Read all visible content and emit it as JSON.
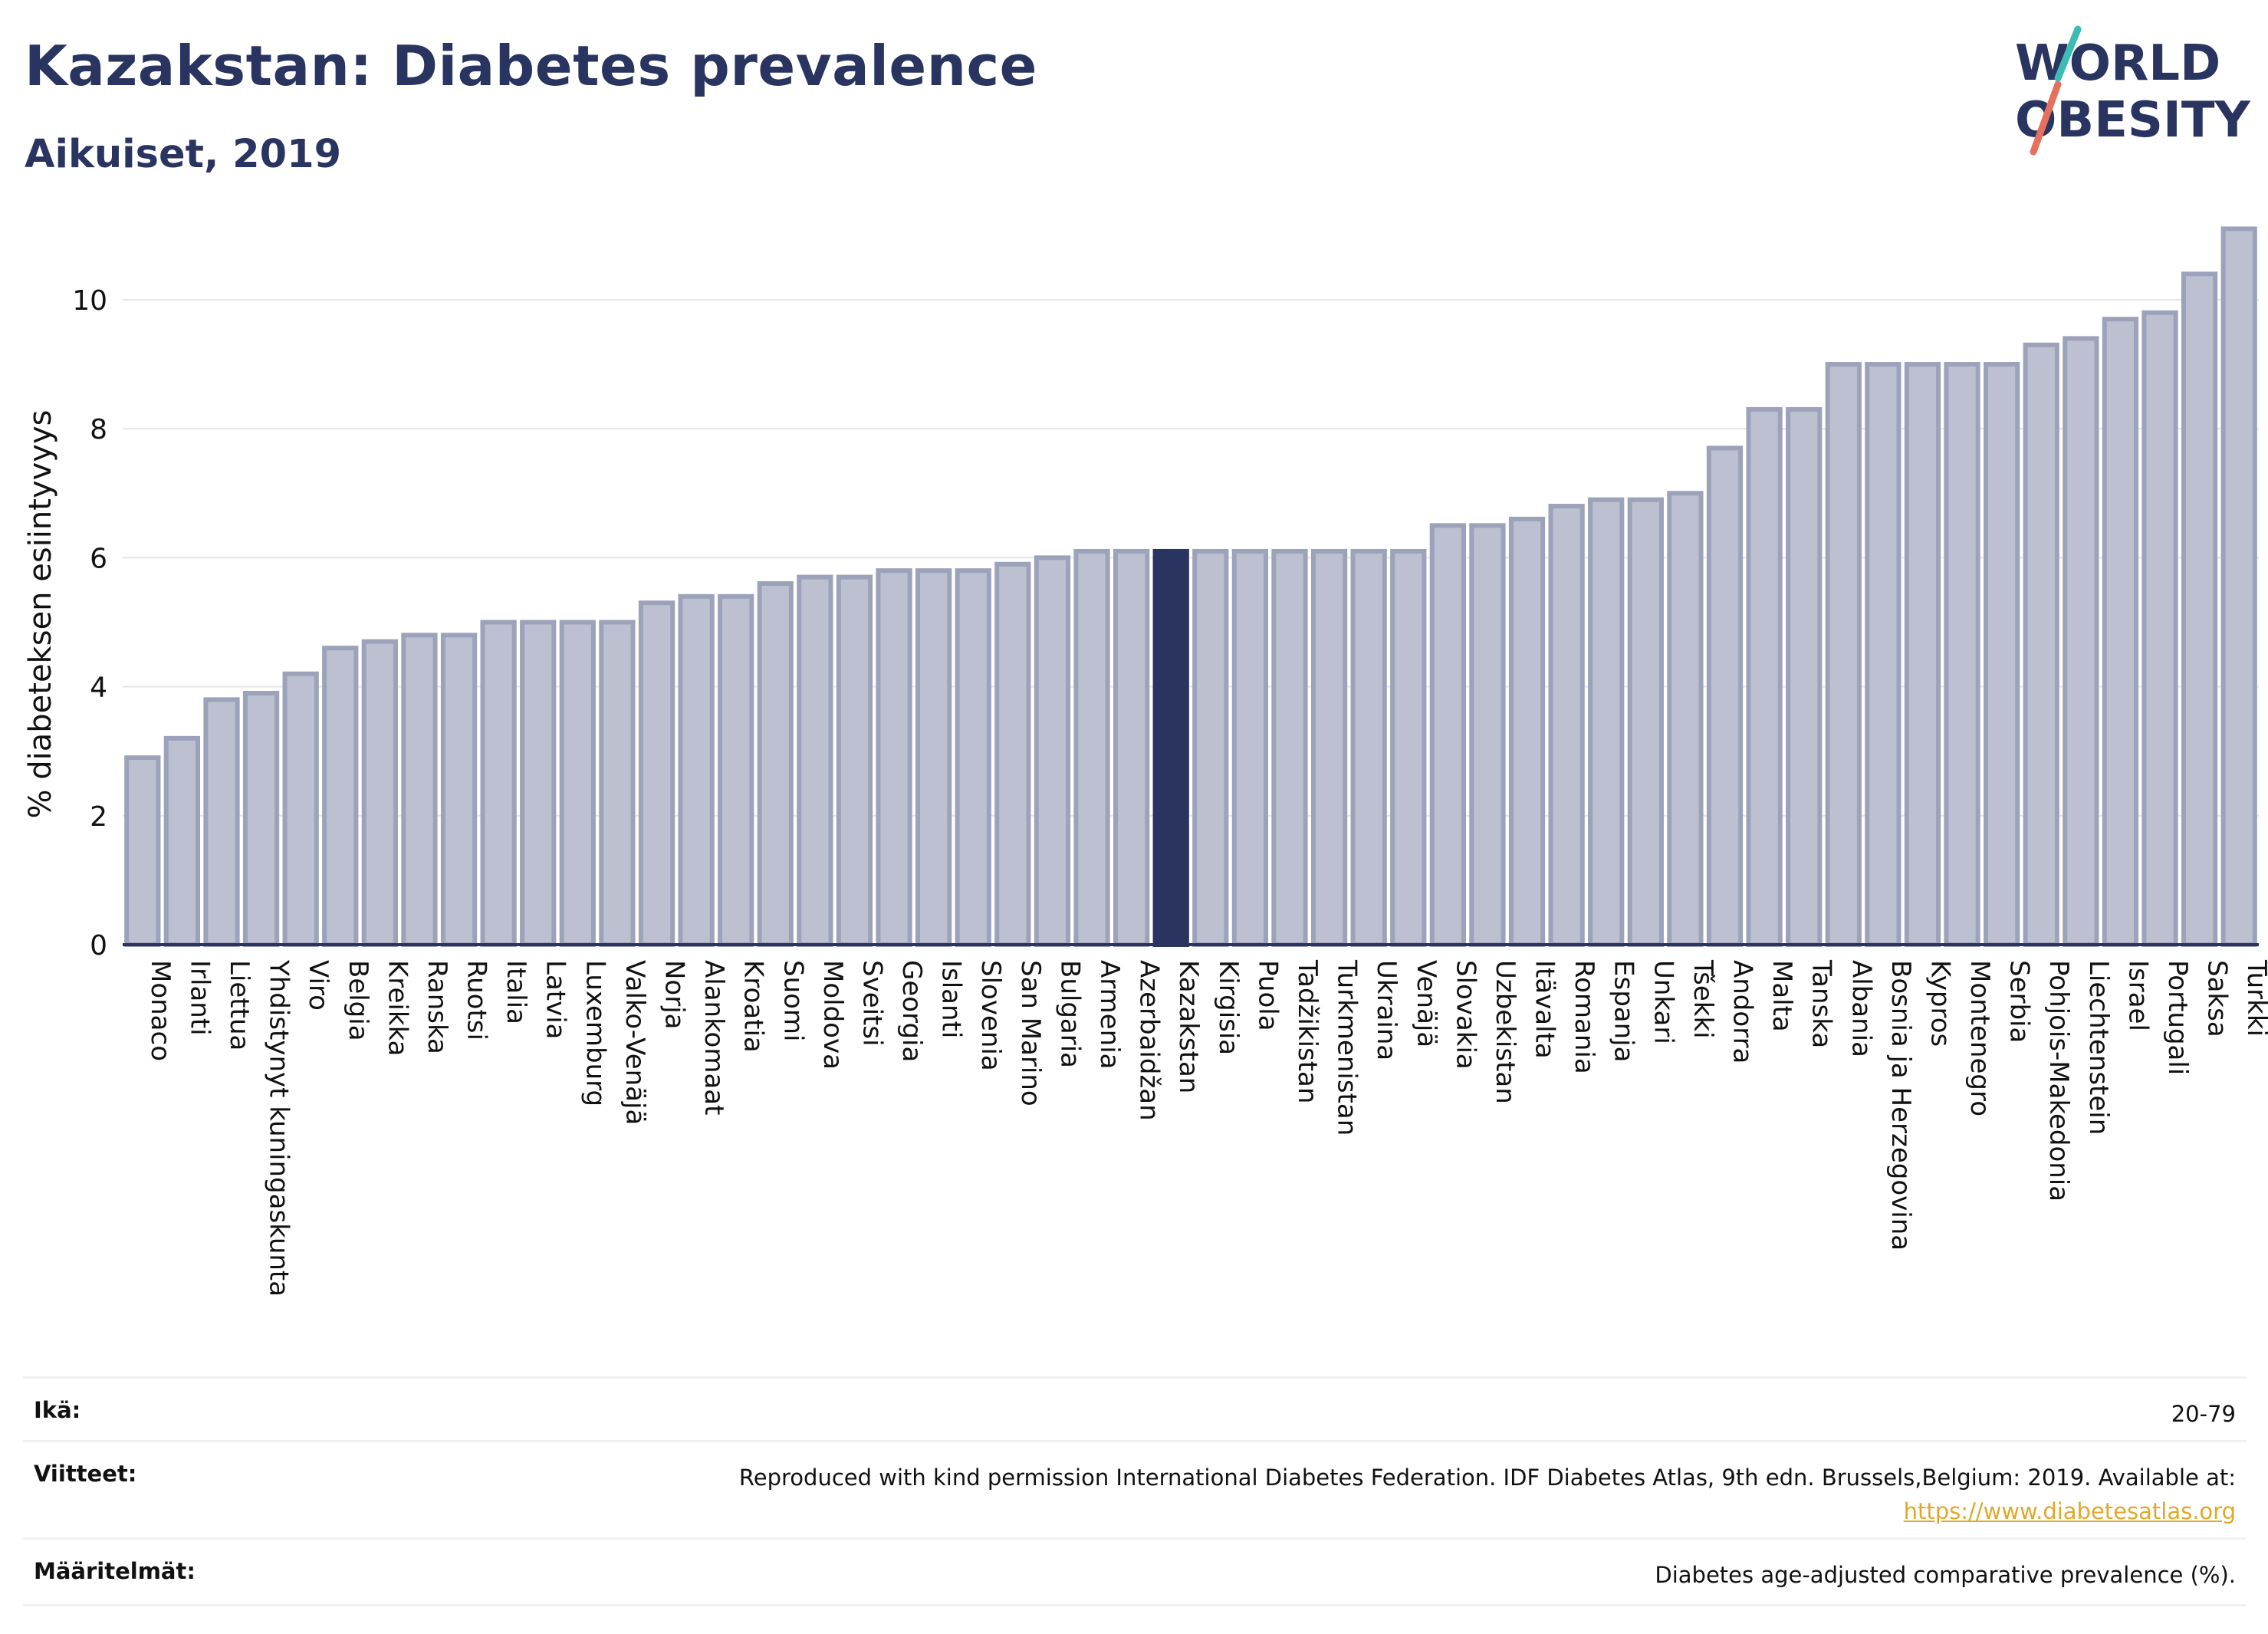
{
  "header": {
    "title": "Kazakstan: Diabetes prevalence",
    "subtitle": "Aikuiset, 2019"
  },
  "logo": {
    "line1": "WORLD",
    "line2": "OBESITY",
    "colors": {
      "navy": "#2a3460",
      "teal": "#3bbcb4",
      "coral": "#e5705d"
    }
  },
  "colors": {
    "bar_fill": "#bcc0d0",
    "bar_stroke": "#9da2bb",
    "highlight_fill": "#2a3460",
    "axis": "#2a3460",
    "grid": "#e6e6e6"
  },
  "chart_data": {
    "type": "bar",
    "ylabel": "% diabeteksen esiintyvyys",
    "xlabel": "",
    "ylim": [
      0,
      11.2
    ],
    "yticks": [
      0,
      2,
      4,
      6,
      8,
      10
    ],
    "grid": true,
    "highlight": "Kazakstan",
    "categories": [
      "Monaco",
      "Irlanti",
      "Liettua",
      "Yhdistynyt kuningaskunta",
      "Viro",
      "Belgia",
      "Kreikka",
      "Ranska",
      "Ruotsi",
      "Italia",
      "Latvia",
      "Luxemburg",
      "Valko-Venäjä",
      "Norja",
      "Alankomaat",
      "Kroatia",
      "Suomi",
      "Moldova",
      "Sveitsi",
      "Georgia",
      "Islanti",
      "Slovenia",
      "San Marino",
      "Bulgaria",
      "Armenia",
      "Azerbaidžan",
      "Kazakstan",
      "Kirgisia",
      "Puola",
      "Tadžikistan",
      "Turkmenistan",
      "Ukraina",
      "Venäjä",
      "Slovakia",
      "Uzbekistan",
      "Itävalta",
      "Romania",
      "Espanja",
      "Unkari",
      "Tšekki",
      "Andorra",
      "Malta",
      "Tanska",
      "Albania",
      "Bosnia ja Herzegovina",
      "Kypros",
      "Montenegro",
      "Serbia",
      "Pohjois-Makedonia",
      "Liechtenstein",
      "Israel",
      "Portugali",
      "Saksa",
      "Turkki"
    ],
    "values": [
      2.9,
      3.2,
      3.8,
      3.9,
      4.2,
      4.6,
      4.7,
      4.8,
      4.8,
      5.0,
      5.0,
      5.0,
      5.0,
      5.3,
      5.4,
      5.4,
      5.6,
      5.7,
      5.7,
      5.8,
      5.8,
      5.8,
      5.9,
      6.0,
      6.1,
      6.1,
      6.1,
      6.1,
      6.1,
      6.1,
      6.1,
      6.1,
      6.1,
      6.5,
      6.5,
      6.6,
      6.8,
      6.9,
      6.9,
      7.0,
      7.7,
      8.3,
      8.3,
      9.0,
      9.0,
      9.0,
      9.0,
      9.0,
      9.3,
      9.4,
      9.7,
      9.8,
      10.4,
      11.1
    ]
  },
  "meta": {
    "age_label": "Ikä:",
    "age_value": "20-79",
    "refs_label": "Viitteet:",
    "refs_value": "Reproduced with kind permission International Diabetes Federation. IDF Diabetes Atlas, 9th edn. Brussels,Belgium: 2019. Available at:",
    "refs_link": "https://www.diabetesatlas.org",
    "defs_label": "Määritelmät:",
    "defs_value": "Diabetes age-adjusted comparative prevalence (%)."
  }
}
